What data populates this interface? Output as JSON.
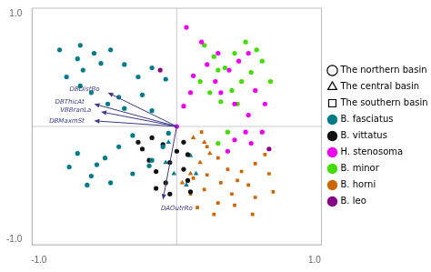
{
  "chart_data": {
    "type": "scatter",
    "series": [
      {
        "name": "B. fasciatus",
        "color": "#007b8a",
        "marker": "circle",
        "values": [
          [
            -0.85,
            0.68
          ],
          [
            -0.72,
            0.6
          ],
          [
            -0.68,
            0.5
          ],
          [
            -0.8,
            0.44
          ],
          [
            -0.7,
            0.36
          ],
          [
            -0.62,
            0.3
          ],
          [
            -0.5,
            0.2
          ],
          [
            -0.42,
            0.26
          ],
          [
            -0.38,
            0.16
          ],
          [
            -0.55,
            0.56
          ],
          [
            -0.6,
            0.65
          ],
          [
            -0.7,
            0.72
          ],
          [
            -0.48,
            0.68
          ],
          [
            -0.38,
            0.55
          ],
          [
            -0.28,
            0.44
          ],
          [
            -0.18,
            0.52
          ],
          [
            -0.08,
            0.42
          ],
          [
            -0.25,
            0.28
          ],
          [
            -0.18,
            0.14
          ],
          [
            -0.32,
            -0.08
          ],
          [
            -0.42,
            -0.18
          ],
          [
            -0.52,
            -0.28
          ],
          [
            -0.58,
            -0.34
          ],
          [
            -0.72,
            -0.24
          ],
          [
            -0.78,
            -0.36
          ],
          [
            -0.62,
            -0.44
          ],
          [
            -0.48,
            -0.5
          ],
          [
            -0.32,
            -0.42
          ],
          [
            -0.18,
            -0.3
          ],
          [
            -0.1,
            -0.18
          ],
          [
            -0.06,
            -0.06
          ],
          [
            -0.2,
            -0.35
          ],
          [
            -0.65,
            -0.52
          ]
        ]
      },
      {
        "name": "B. vittatus",
        "color": "#111111",
        "marker": "circle",
        "values": [
          [
            -0.18,
            -0.1
          ],
          [
            -0.25,
            -0.2
          ],
          [
            -0.2,
            -0.3
          ],
          [
            -0.15,
            -0.4
          ],
          [
            -0.08,
            -0.5
          ],
          [
            -0.05,
            -0.32
          ],
          [
            0.0,
            -0.22
          ],
          [
            0.05,
            -0.14
          ],
          [
            0.05,
            -0.38
          ],
          [
            0.08,
            -0.48
          ],
          [
            0.08,
            -0.25
          ],
          [
            -0.1,
            -0.16
          ],
          [
            -0.28,
            -0.14
          ],
          [
            -0.15,
            -0.55
          ],
          [
            -0.05,
            -0.6
          ],
          [
            0.1,
            -0.58
          ]
        ]
      },
      {
        "name": "H. stenosoma",
        "color": "#ee00ee",
        "marker": "circle",
        "values": [
          [
            0.07,
            0.88
          ],
          [
            0.18,
            0.75
          ],
          [
            0.3,
            0.65
          ],
          [
            0.22,
            0.55
          ],
          [
            0.12,
            0.45
          ],
          [
            0.28,
            0.4
          ],
          [
            0.38,
            0.5
          ],
          [
            0.45,
            0.58
          ],
          [
            0.52,
            0.65
          ],
          [
            0.32,
            0.3
          ],
          [
            0.42,
            0.2
          ],
          [
            0.52,
            0.1
          ],
          [
            0.5,
            -0.05
          ],
          [
            0.42,
            -0.12
          ],
          [
            0.37,
            -0.22
          ],
          [
            0.54,
            -0.15
          ],
          [
            0.62,
            -0.05
          ],
          [
            0.57,
            0.32
          ],
          [
            0.64,
            0.2
          ],
          [
            0.1,
            0.3
          ],
          [
            0.05,
            0.18
          ],
          [
            0.0,
            0.0
          ]
        ]
      },
      {
        "name": "B. minor",
        "color": "#44dd00",
        "marker": "circle",
        "values": [
          [
            0.2,
            0.72
          ],
          [
            0.27,
            0.62
          ],
          [
            0.35,
            0.52
          ],
          [
            0.42,
            0.65
          ],
          [
            0.5,
            0.75
          ],
          [
            0.58,
            0.68
          ],
          [
            0.54,
            0.48
          ],
          [
            0.47,
            0.4
          ],
          [
            0.4,
            0.32
          ],
          [
            0.32,
            0.22
          ],
          [
            0.24,
            0.3
          ],
          [
            0.17,
            0.4
          ],
          [
            0.3,
            0.5
          ],
          [
            0.62,
            0.58
          ],
          [
            0.44,
            0.2
          ],
          [
            0.37,
            -0.05
          ],
          [
            0.3,
            -0.15
          ],
          [
            0.68,
            0.4
          ]
        ]
      },
      {
        "name": "B. horni",
        "color": "#cc6600",
        "marker": "square",
        "values": [
          [
            0.18,
            -0.05
          ],
          [
            0.22,
            -0.18
          ],
          [
            0.3,
            -0.28
          ],
          [
            0.37,
            -0.38
          ],
          [
            0.44,
            -0.48
          ],
          [
            0.52,
            -0.52
          ],
          [
            0.4,
            -0.6
          ],
          [
            0.3,
            -0.68
          ],
          [
            0.2,
            -0.56
          ],
          [
            0.12,
            -0.46
          ],
          [
            0.1,
            -0.6
          ],
          [
            0.22,
            -0.43
          ],
          [
            0.32,
            -0.5
          ],
          [
            0.47,
            -0.4
          ],
          [
            0.57,
            -0.33
          ],
          [
            0.64,
            -0.25
          ],
          [
            0.67,
            -0.42
          ],
          [
            0.7,
            -0.58
          ],
          [
            0.57,
            -0.63
          ],
          [
            0.42,
            -0.7
          ],
          [
            0.27,
            -0.78
          ],
          [
            0.15,
            -0.72
          ],
          [
            0.55,
            -0.78
          ]
        ]
      },
      {
        "name": "B. leo",
        "color": "#880088",
        "marker": "circle",
        "values": [
          [
            -0.12,
            0.5
          ],
          [
            0.67,
            -0.2
          ]
        ]
      },
      {
        "name": "B. fasciatus",
        "color": "#007b8a",
        "marker": "triangle",
        "values": [
          [
            -0.06,
            -0.14
          ],
          [
            -0.08,
            -0.32
          ],
          [
            -0.02,
            -0.42
          ],
          [
            0.07,
            -0.52
          ],
          [
            0.14,
            -0.42
          ],
          [
            0.1,
            -0.26
          ]
        ]
      },
      {
        "name": "B. horni",
        "color": "#cc6600",
        "marker": "triangle",
        "values": [
          [
            0.12,
            -0.1
          ],
          [
            0.2,
            -0.14
          ],
          [
            0.24,
            -0.24
          ],
          [
            0.17,
            -0.32
          ],
          [
            0.1,
            -0.42
          ],
          [
            0.04,
            -0.5
          ]
        ]
      }
    ],
    "shape_legend": [
      {
        "marker": "circle",
        "label": "The northern basin"
      },
      {
        "marker": "triangle",
        "label": "The central basin"
      },
      {
        "marker": "square",
        "label": "The southern basin"
      }
    ],
    "arrow_color": "#3a3a8c",
    "origin": [
      0.0,
      0.0
    ],
    "arrows": [
      {
        "label": "DBDistBo",
        "x": -0.5,
        "y": 0.3,
        "label_x": -0.56,
        "label_y": 0.33
      },
      {
        "label": "DBThicAt",
        "x": -0.6,
        "y": 0.2,
        "label_x": -0.67,
        "label_y": 0.22
      },
      {
        "label": "VBBranLa",
        "x": -0.55,
        "y": 0.13,
        "label_x": -0.62,
        "label_y": 0.14
      },
      {
        "label": "DBMaxmSt",
        "x": -0.6,
        "y": 0.05,
        "label_x": -0.67,
        "label_y": 0.05
      },
      {
        "label": "DAOutrRo",
        "x": -0.1,
        "y": -0.65,
        "label_x": 0.0,
        "label_y": -0.73
      }
    ],
    "xlim": [
      -1.05,
      1.05
    ],
    "ylim": [
      -1.05,
      1.05
    ],
    "xticks": [
      {
        "value": -1.0,
        "label": "-1.0"
      },
      {
        "value": 1.0,
        "label": "1.0"
      }
    ],
    "yticks": [
      {
        "value": -1.0,
        "label": "-1.0"
      },
      {
        "value": 1.0,
        "label": "1.0"
      }
    ],
    "grid": false,
    "legend": "right"
  }
}
